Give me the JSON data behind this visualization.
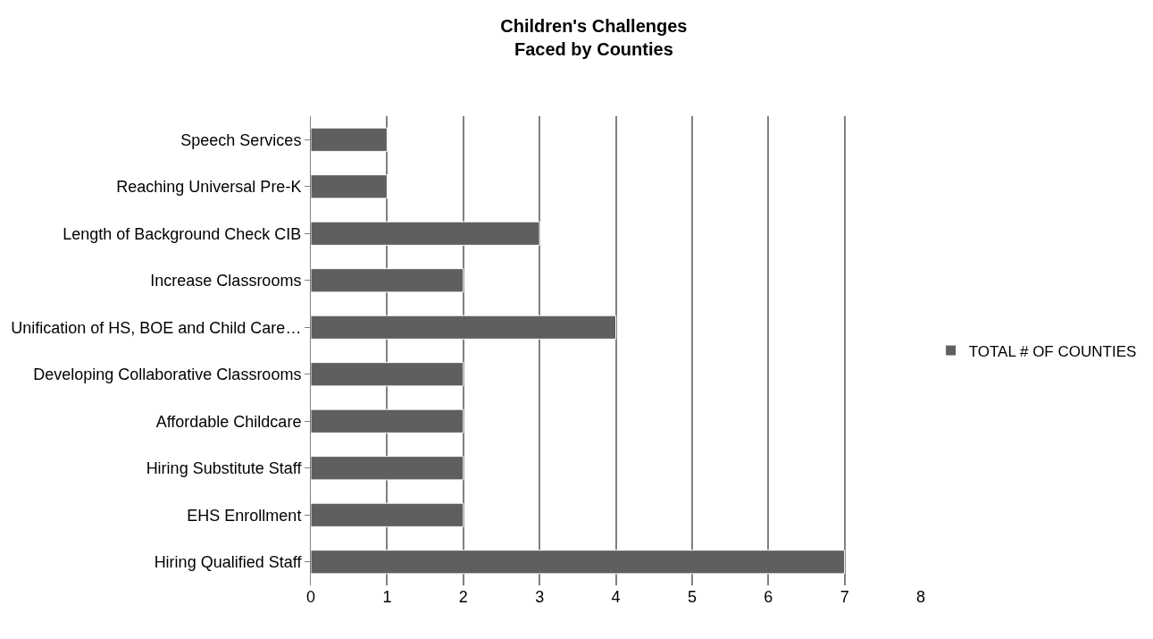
{
  "chart_data": {
    "type": "bar",
    "orientation": "horizontal",
    "title": "Children's Challenges\nFaced by Counties",
    "categories": [
      "Speech Services",
      "Reaching Universal Pre-K",
      "Length of Background Check CIB",
      "Increase Classrooms",
      "Unification of HS, BOE and Child Care…",
      "Developing Collaborative Classrooms",
      "Affordable Childcare",
      "Hiring Substitute Staff",
      "EHS Enrollment",
      "Hiring Qualified Staff"
    ],
    "series": [
      {
        "name": "TOTAL # OF COUNTIES",
        "color": "#5f5f5f",
        "values": [
          1,
          1,
          3,
          2,
          4,
          2,
          2,
          2,
          2,
          7
        ]
      }
    ],
    "xlim": [
      0,
      8
    ],
    "xticks": [
      0,
      1,
      2,
      3,
      4,
      5,
      6,
      7,
      8
    ],
    "grid": "x",
    "legend": "right"
  }
}
